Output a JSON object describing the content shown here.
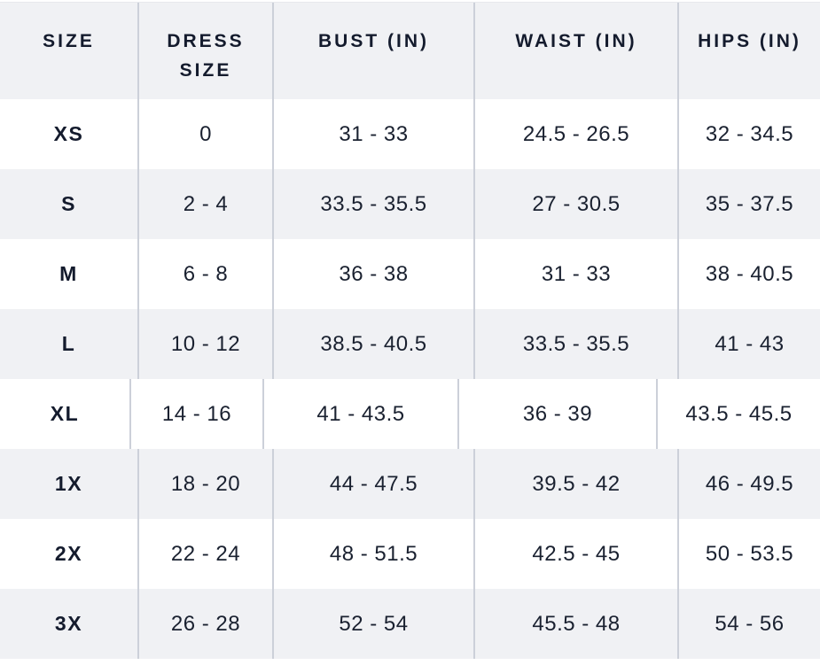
{
  "table": {
    "columns": [
      "SIZE",
      "DRESS SIZE",
      "BUST (IN)",
      "WAIST (IN)",
      "HIPS (IN)"
    ],
    "rows": [
      {
        "size": "XS",
        "dress_size": "0",
        "bust": "31 - 33",
        "waist": "24.5 - 26.5",
        "hips": "32 - 34.5"
      },
      {
        "size": "S",
        "dress_size": "2 - 4",
        "bust": "33.5 - 35.5",
        "waist": "27 - 30.5",
        "hips": "35 - 37.5"
      },
      {
        "size": "M",
        "dress_size": "6 - 8",
        "bust": "36 - 38",
        "waist": "31 - 33",
        "hips": "38 - 40.5"
      },
      {
        "size": "L",
        "dress_size": "10 - 12",
        "bust": "38.5 - 40.5",
        "waist": "33.5 - 35.5",
        "hips": "41 - 43"
      },
      {
        "size": "XL",
        "dress_size": "14 - 16",
        "bust": "41 - 43.5",
        "waist": "36 - 39",
        "hips": "43.5 - 45.5"
      },
      {
        "size": "1X",
        "dress_size": "18 - 20",
        "bust": "44 - 47.5",
        "waist": "39.5 - 42",
        "hips": "46 - 49.5"
      },
      {
        "size": "2X",
        "dress_size": "22 - 24",
        "bust": "48 - 51.5",
        "waist": "42.5 - 45",
        "hips": "50 - 53.5"
      },
      {
        "size": "3X",
        "dress_size": "26 - 28",
        "bust": "52 - 54",
        "waist": "45.5 - 48",
        "hips": "54 - 56"
      }
    ]
  },
  "colors": {
    "stripe_background": "#f0f1f4",
    "row_background": "#ffffff",
    "text": "#1a2130",
    "header_text": "#141b2d",
    "separator": "#ccd0d9"
  }
}
